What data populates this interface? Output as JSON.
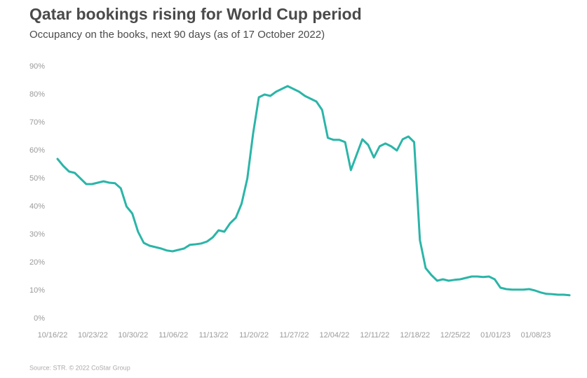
{
  "chart_data": {
    "type": "line",
    "title": "Qatar bookings rising for World Cup period",
    "subtitle": "Occupancy on the books, next 90 days (as of 17 October 2022)",
    "source": "Source: STR. © 2022 CoStar Group",
    "categories": [
      "10/16/22",
      null,
      null,
      null,
      null,
      null,
      null,
      "10/23/22",
      null,
      null,
      null,
      null,
      null,
      null,
      "10/30/22",
      null,
      null,
      null,
      null,
      null,
      null,
      "11/06/22",
      null,
      null,
      null,
      null,
      null,
      null,
      "11/13/22",
      null,
      null,
      null,
      null,
      null,
      null,
      "11/20/22",
      null,
      null,
      null,
      null,
      null,
      null,
      "11/27/22",
      null,
      null,
      null,
      null,
      null,
      null,
      "12/04/22",
      null,
      null,
      null,
      null,
      null,
      null,
      "12/11/22",
      null,
      null,
      null,
      null,
      null,
      null,
      "12/18/22",
      null,
      null,
      null,
      null,
      null,
      null,
      "12/25/22",
      null,
      null,
      null,
      null,
      null,
      null,
      "01/01/23",
      null,
      null,
      null,
      null,
      null,
      null,
      "01/08/23",
      null,
      null,
      null,
      null,
      null
    ],
    "values": [
      57,
      54.5,
      52.5,
      52,
      50,
      48,
      48,
      48.5,
      49,
      48.5,
      48.3,
      46.5,
      40,
      37.5,
      31,
      27,
      26,
      25.5,
      25,
      24.3,
      24,
      24.5,
      25,
      26.3,
      26.5,
      26.8,
      27.5,
      29,
      31.5,
      31,
      34,
      36,
      41,
      50,
      66,
      79,
      80,
      79.5,
      81,
      82,
      83,
      82,
      81,
      79.5,
      78.5,
      77.5,
      74.5,
      64.5,
      63.8,
      63.8,
      63,
      53,
      58.5,
      64,
      62,
      57.5,
      61.5,
      62.5,
      61.5,
      60,
      64,
      65,
      63,
      28,
      18,
      15.5,
      13.5,
      14,
      13.5,
      13.8,
      14,
      14.5,
      15,
      15,
      14.8,
      15,
      14,
      11,
      10.5,
      10.3,
      10.3,
      10.3,
      10.5,
      10,
      9.3,
      8.8,
      8.7,
      8.5,
      8.5,
      8.3
    ],
    "color": "#2bb5a8",
    "ylim": [
      0,
      90
    ],
    "yticks": [
      {
        "value": 0,
        "label": "0%"
      },
      {
        "value": 10,
        "label": "10%"
      },
      {
        "value": 20,
        "label": "20%"
      },
      {
        "value": 30,
        "label": "30%"
      },
      {
        "value": 40,
        "label": "40%"
      },
      {
        "value": 50,
        "label": "50%"
      },
      {
        "value": 60,
        "label": "60%"
      },
      {
        "value": 70,
        "label": "70%"
      },
      {
        "value": 80,
        "label": "80%"
      },
      {
        "value": 90,
        "label": "90%"
      }
    ],
    "grid": false
  }
}
